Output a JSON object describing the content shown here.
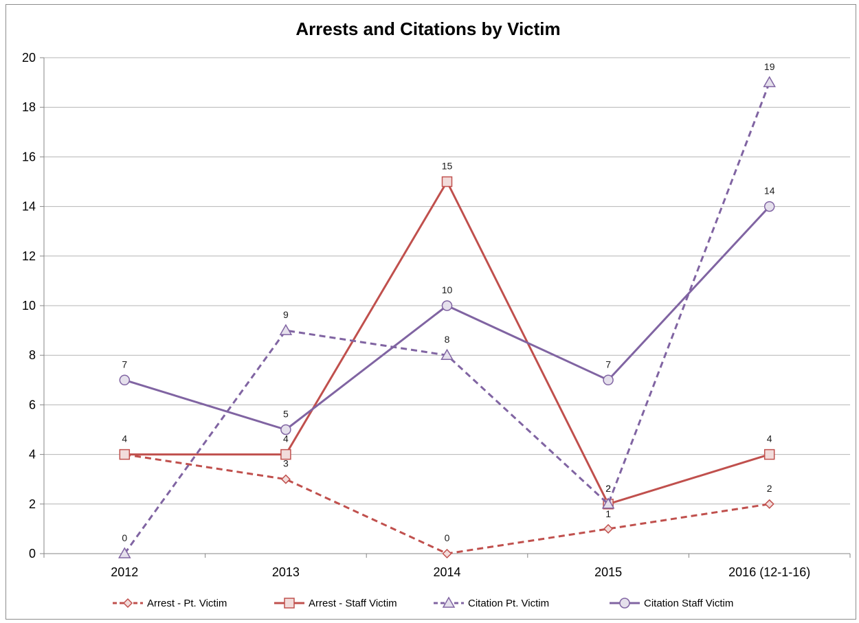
{
  "chart_data": {
    "type": "line",
    "title": "Arrests and Citations by Victim",
    "xlabel": "",
    "ylabel": "",
    "categories": [
      "2012",
      "2013",
      "2014",
      "2015",
      "2016 (12-1-16)"
    ],
    "ylim": [
      0,
      20
    ],
    "yticks": [
      0,
      2,
      4,
      6,
      8,
      10,
      12,
      14,
      16,
      18,
      20
    ],
    "grid": "horizontal",
    "legend": "bottom",
    "series": [
      {
        "name": "Arrest - Pt. Victim",
        "values": [
          4,
          3,
          0,
          1,
          2
        ],
        "color": "#c0504d",
        "dash": "dashed",
        "marker": "diamond"
      },
      {
        "name": "Arrest - Staff Victim",
        "values": [
          4,
          4,
          15,
          2,
          4
        ],
        "color": "#c0504d",
        "dash": "solid",
        "marker": "square"
      },
      {
        "name": "Citation Pt. Victim",
        "values": [
          0,
          9,
          8,
          2,
          19
        ],
        "color": "#8064a2",
        "dash": "dashed",
        "marker": "triangle"
      },
      {
        "name": "Citation Staff Victim",
        "values": [
          7,
          5,
          10,
          7,
          14
        ],
        "color": "#8064a2",
        "dash": "solid",
        "marker": "circle"
      }
    ]
  }
}
